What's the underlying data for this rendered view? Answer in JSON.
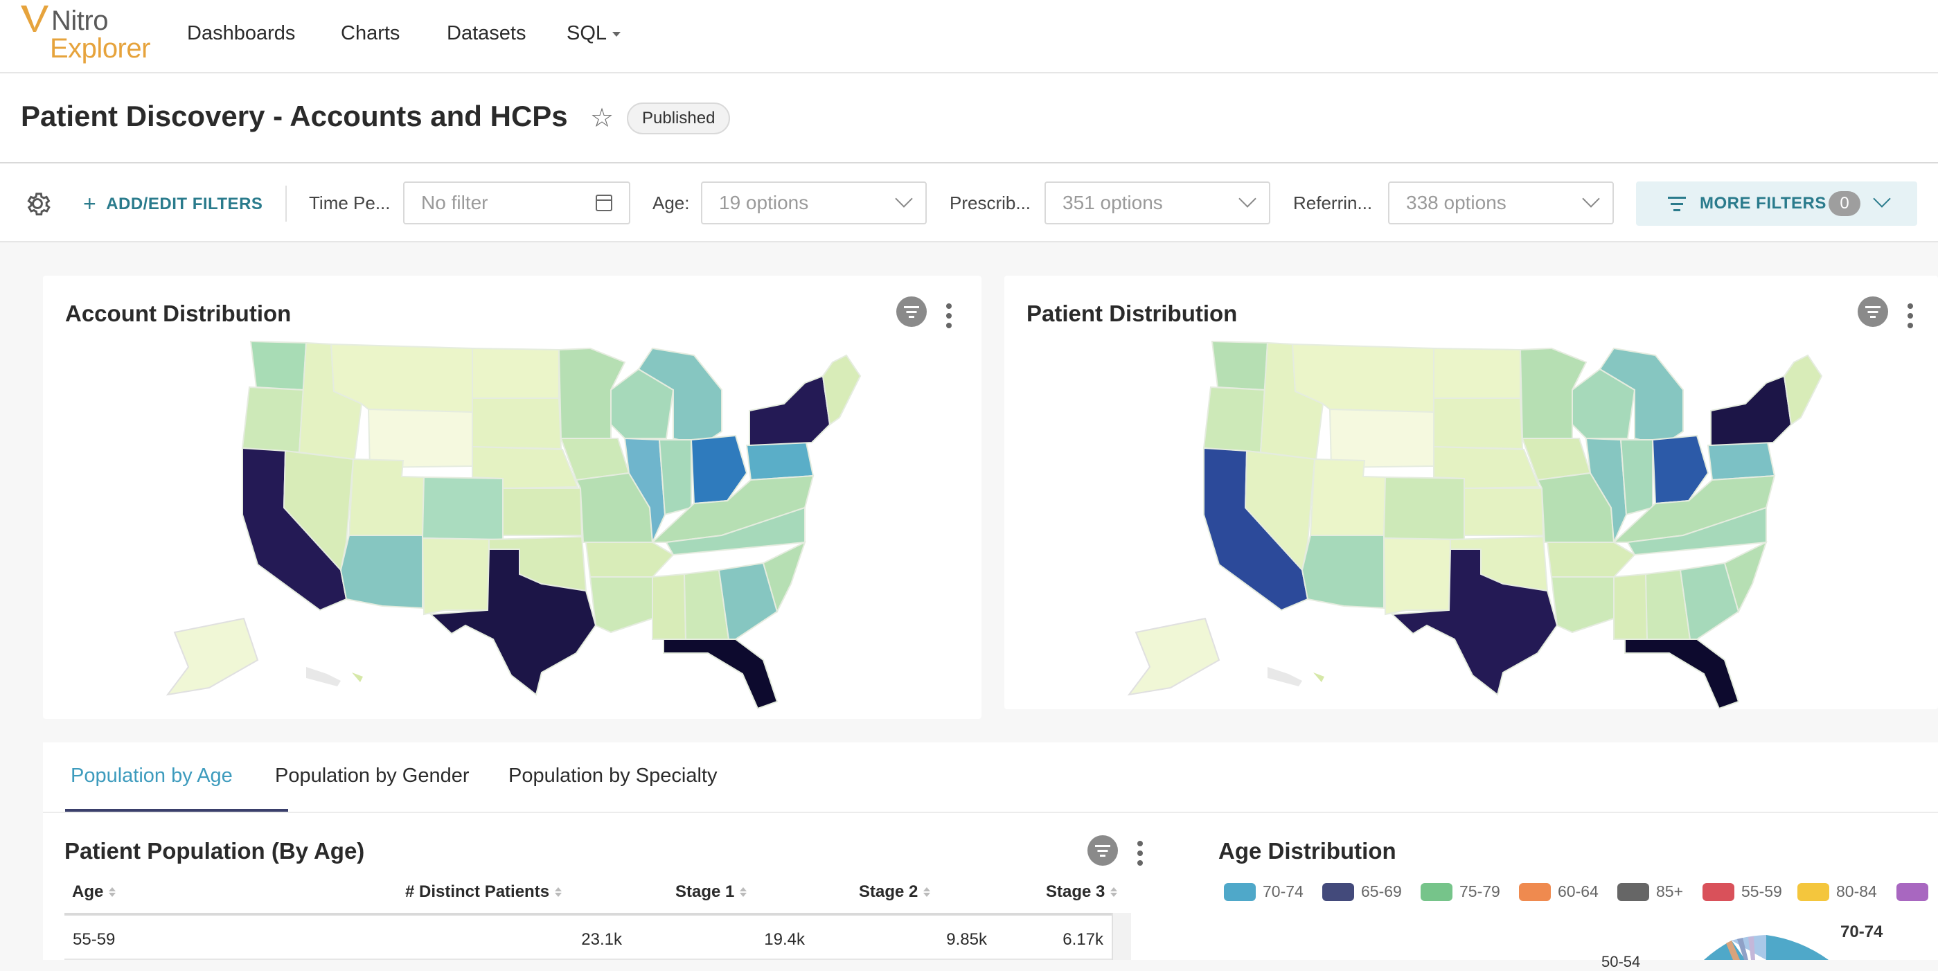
{
  "app": {
    "logo_line1": "Nitro",
    "logo_line2": "Explorer",
    "nav": [
      "Dashboards",
      "Charts",
      "Datasets",
      "SQL"
    ]
  },
  "dashboard": {
    "title": "Patient Discovery - Accounts and HCPs",
    "status": "Published"
  },
  "filters": {
    "add_edit_label": "ADD/EDIT FILTERS",
    "time_period": {
      "label": "Time Pe...",
      "value": "No filter"
    },
    "age": {
      "label": "Age:",
      "value": "19 options"
    },
    "prescriber": {
      "label": "Prescrib...",
      "value": "351 options"
    },
    "referring": {
      "label": "Referrin...",
      "value": "338 options"
    },
    "more_label": "MORE FILTERS",
    "more_count": "0"
  },
  "cards": {
    "account_distribution": {
      "title": "Account Distribution"
    },
    "patient_distribution": {
      "title": "Patient Distribution"
    }
  },
  "tabs": [
    "Population by Age",
    "Population by Gender",
    "Population by Specialty"
  ],
  "population_table": {
    "title": "Patient Population (By Age)",
    "columns": [
      "Age",
      "# Distinct Patients",
      "Stage 1",
      "Stage 2",
      "Stage 3"
    ],
    "rows": [
      [
        "55-59",
        "23.1k",
        "19.4k",
        "9.85k",
        "6.17k"
      ]
    ]
  },
  "age_distribution": {
    "title": "Age Distribution",
    "legend": [
      {
        "label": "70-74",
        "color": "#4fa8c9"
      },
      {
        "label": "65-69",
        "color": "#434a7b"
      },
      {
        "label": "75-79",
        "color": "#76c48a"
      },
      {
        "label": "60-64",
        "color": "#ef8a4f"
      },
      {
        "label": "85+",
        "color": "#666666"
      },
      {
        "label": "55-59",
        "color": "#d9515a"
      },
      {
        "label": "80-84",
        "color": "#f4c63d"
      },
      {
        "label": "",
        "color": "#a867c0"
      }
    ],
    "slice_label_1": "70-74",
    "slice_label_2": "50-54"
  },
  "colors": {
    "accent": "#2a7b8c",
    "tab_active": "#3d9bbd",
    "map_darkest": "#0d0a2e",
    "map_dark": "#241a55",
    "map_blue": "#2f7bbd",
    "map_teal": "#86c6c1",
    "map_green": "#b6dfb3",
    "map_light": "#e4f2c2"
  }
}
